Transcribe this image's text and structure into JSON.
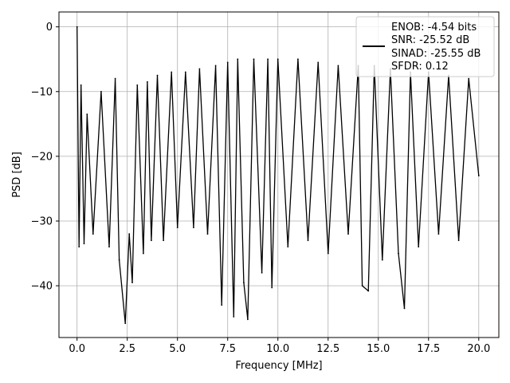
{
  "chart_data": {
    "type": "line",
    "title": "",
    "xlabel": "Frequency [MHz]",
    "ylabel": "PSD [dB]",
    "xlim": [
      -0.9,
      21.0
    ],
    "ylim": [
      -48.0,
      2.3
    ],
    "xticks": [
      0.0,
      2.5,
      5.0,
      7.5,
      10.0,
      12.5,
      15.0,
      17.5,
      20.0
    ],
    "xtick_labels": [
      "0.0",
      "2.5",
      "5.0",
      "7.5",
      "10.0",
      "12.5",
      "15.0",
      "17.5",
      "20.0"
    ],
    "yticks": [
      0,
      -10,
      -20,
      -30,
      -40
    ],
    "ytick_labels": [
      "0",
      "−10",
      "−20",
      "−30",
      "−40"
    ],
    "grid": true,
    "legend_position": "top-right",
    "legend": [
      "ENOB: -4.54 bits",
      "SNR: -25.52 dB",
      "SINAD: -25.55 dB",
      "SFDR: 0.12"
    ],
    "series_color": "#000000",
    "series": [
      {
        "x": [
          0.0,
          0.1,
          0.2,
          0.35,
          0.5,
          0.8,
          1.2,
          1.6,
          1.9,
          2.1,
          2.4,
          2.6,
          2.75,
          3.0,
          3.3,
          3.5,
          3.7,
          4.0,
          4.3,
          4.7,
          5.0,
          5.4,
          5.8,
          6.1,
          6.5,
          6.9,
          7.2,
          7.5,
          7.8,
          8.0,
          8.3,
          8.5,
          8.8,
          9.2,
          9.5,
          9.7,
          10.0,
          10.5,
          11.0,
          11.5,
          12.0,
          12.5,
          13.0,
          13.5,
          14.0,
          14.2,
          14.5,
          14.8,
          15.2,
          15.6,
          16.0,
          16.3,
          16.6,
          17.0,
          17.5,
          18.0,
          18.5,
          19.0,
          19.5,
          20.0
        ],
        "y": [
          0.0,
          -34.0,
          -9.0,
          -33.5,
          -13.5,
          -32.0,
          -10.0,
          -34.0,
          -8.0,
          -36.0,
          -45.8,
          -32.0,
          -39.5,
          -9.0,
          -35.0,
          -8.5,
          -33.0,
          -7.5,
          -33.0,
          -7.0,
          -31.0,
          -7.0,
          -31.0,
          -6.5,
          -32.0,
          -6.0,
          -43.0,
          -5.5,
          -44.8,
          -5.0,
          -39.5,
          -45.2,
          -5.0,
          -38.0,
          -5.0,
          -40.3,
          -5.0,
          -34.0,
          -5.0,
          -33.0,
          -5.5,
          -35.0,
          -6.0,
          -32.0,
          -6.0,
          -40.0,
          -40.8,
          -6.0,
          -36.0,
          -6.5,
          -35.0,
          -43.5,
          -7.0,
          -34.0,
          -7.0,
          -32.0,
          -7.5,
          -33.0,
          -8.0,
          -23.0
        ]
      }
    ]
  }
}
